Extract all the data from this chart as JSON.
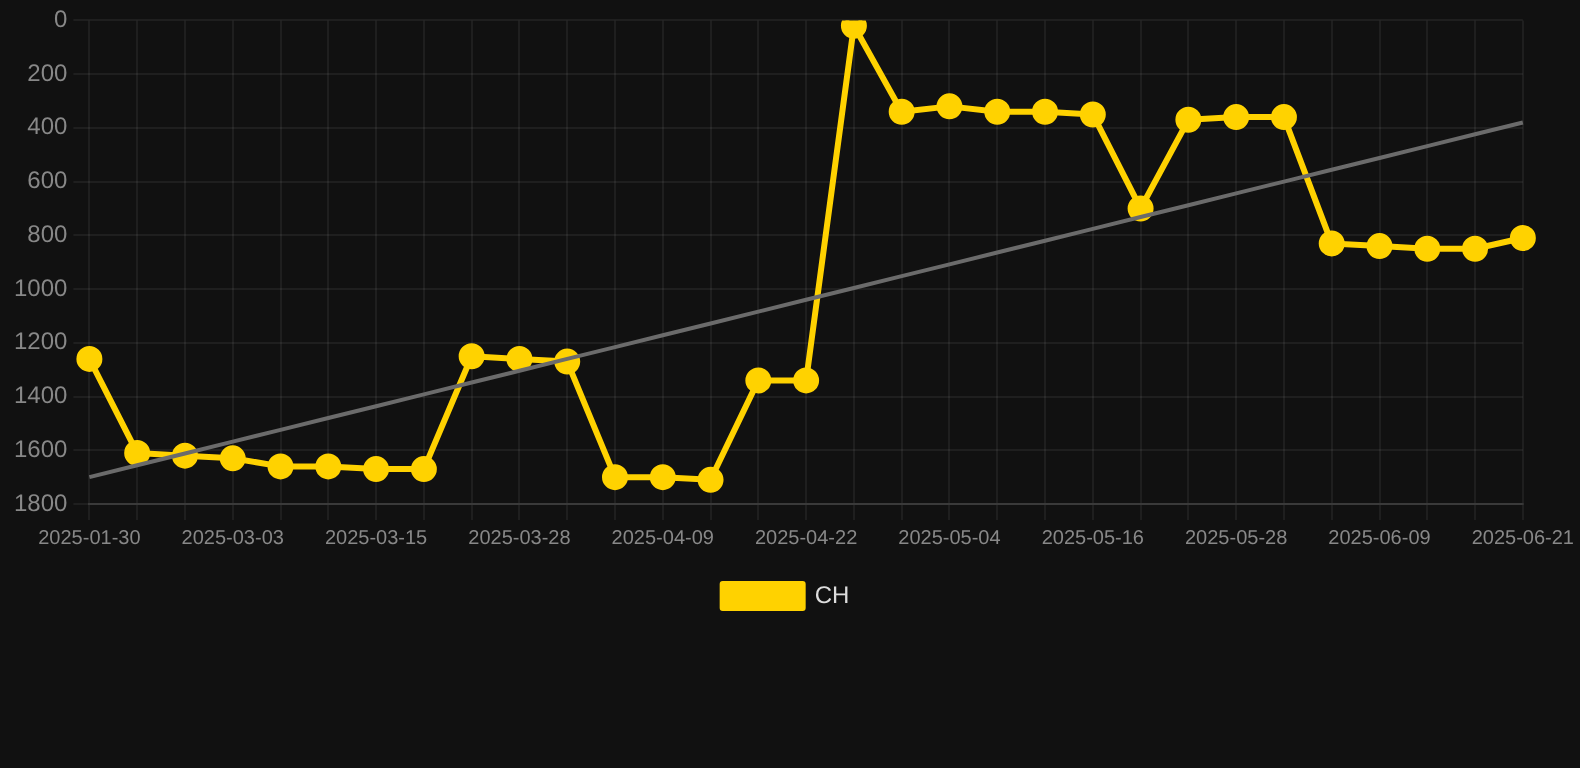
{
  "chart_data": {
    "type": "line",
    "categories": [
      "2025-01-30",
      null,
      null,
      "2025-03-03",
      null,
      null,
      "2025-03-15",
      null,
      null,
      "2025-03-28",
      null,
      null,
      "2025-04-09",
      null,
      null,
      "2025-04-22",
      null,
      null,
      "2025-05-04",
      null,
      null,
      "2025-05-16",
      null,
      null,
      "2025-05-28",
      null,
      null,
      "2025-06-09",
      null,
      null,
      "2025-06-21"
    ],
    "series": [
      {
        "name": "CH",
        "color": "#ffd200",
        "values": [
          1260,
          1610,
          1620,
          1630,
          1660,
          1660,
          1670,
          1670,
          1250,
          1260,
          1270,
          1700,
          1700,
          1710,
          1340,
          1340,
          20,
          340,
          320,
          340,
          340,
          350,
          700,
          370,
          360,
          360,
          830,
          840,
          850,
          850,
          810
        ]
      },
      {
        "type": "line",
        "color": "#6b6b6b",
        "marker": "none",
        "values": [
          1700,
          1656,
          1612,
          1568,
          1524,
          1480,
          1436,
          1392,
          1348,
          1304,
          1260,
          1216,
          1172,
          1128,
          1084,
          1040,
          996,
          952,
          908,
          864,
          820,
          776,
          732,
          688,
          644,
          600,
          556,
          512,
          468,
          424,
          380
        ]
      }
    ],
    "ylim": [
      1800,
      0
    ],
    "yticks": [
      0,
      200,
      400,
      600,
      800,
      1000,
      1200,
      1400,
      1600,
      1800
    ],
    "grid": true,
    "legend": "bottom",
    "marker": "circle",
    "line_style": "solid"
  }
}
